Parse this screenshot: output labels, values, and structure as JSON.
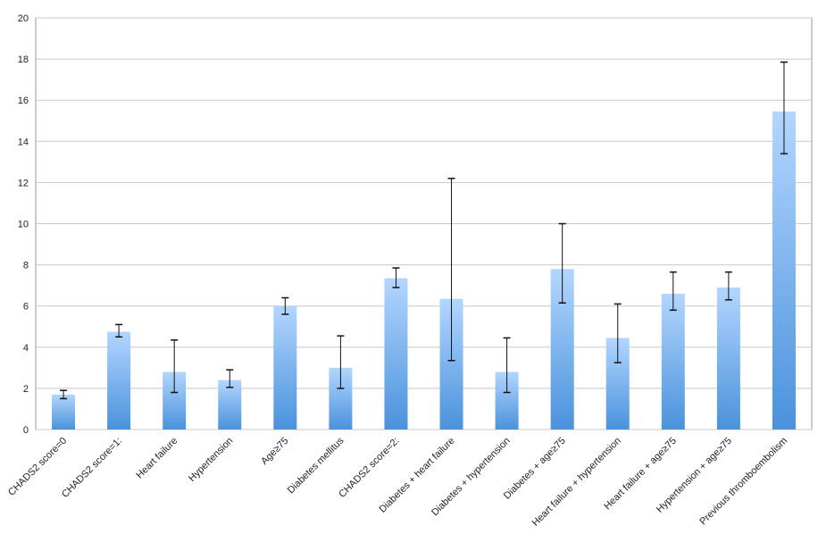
{
  "chart_data": {
    "type": "bar",
    "categories": [
      "CHADS2 score=0",
      "CHADS2 score=1:",
      "Heart failure",
      "Hypertension",
      "Age≥75",
      "Diabetes mellitus",
      "CHADS2 score=2:",
      "Diabetes + heart failure",
      "Diabetes + hypertension",
      "Diabetes + age≥75",
      "Heart failure + hypertension",
      "Heart failure + age≥75",
      "Hypertension + age≥75",
      "Previous thromboembolism"
    ],
    "values": [
      1.7,
      4.75,
      2.8,
      2.4,
      6.0,
      3.0,
      7.35,
      6.35,
      2.8,
      7.8,
      4.45,
      6.6,
      6.9,
      15.45
    ],
    "lower": [
      1.5,
      4.5,
      1.8,
      2.05,
      5.6,
      2.0,
      6.9,
      3.35,
      1.8,
      6.15,
      3.25,
      5.8,
      6.3,
      13.4
    ],
    "upper": [
      1.9,
      5.1,
      4.35,
      2.9,
      6.4,
      4.55,
      7.85,
      12.2,
      4.45,
      10.0,
      6.1,
      7.65,
      7.65,
      17.85
    ],
    "color": "#4a92dc",
    "ylim": [
      0,
      20
    ],
    "yticks": [
      0,
      2,
      4,
      6,
      8,
      10,
      12,
      14,
      16,
      18,
      20
    ],
    "grid": true
  }
}
